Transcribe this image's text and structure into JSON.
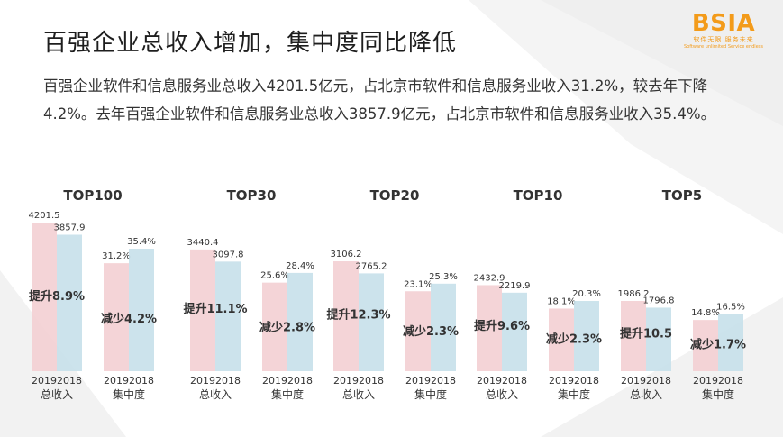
{
  "header": {
    "title": "百强企业总收入增加，集中度同比降低",
    "description": "百强企业软件和信息服务业总收入4201.5亿元，占北京市软件和信息服务业收入31.2%，较去年下降4.2%。去年百强企业软件和信息服务业总收入3857.9亿元，占北京市软件和信息服务业收入35.4%。"
  },
  "logo": {
    "text": "BSIA",
    "cn": "软件无限 服务未来",
    "en": "Software unlimited Service endless"
  },
  "colors": {
    "bar_2019": "#f3cfd3",
    "bar_2018": "#c6e0ea",
    "text": "#333333",
    "logo": "#f39b1a"
  },
  "chart_data": {
    "type": "bar",
    "series_names": [
      "2019",
      "2018"
    ],
    "groups": [
      {
        "title": "TOP100",
        "revenue": {
          "values": [
            4201.5,
            3857.9
          ],
          "change": "提升8.9%",
          "label": "总收入"
        },
        "concentration": {
          "values": [
            31.2,
            35.4
          ],
          "display": [
            "31.2%",
            "35.4%"
          ],
          "change": "减少4.2%",
          "label": "集中度"
        }
      },
      {
        "title": "TOP30",
        "revenue": {
          "values": [
            3440.4,
            3097.8
          ],
          "change": "提升11.1%",
          "label": "总收入"
        },
        "concentration": {
          "values": [
            25.6,
            28.4
          ],
          "display": [
            "25.6%",
            "28.4%"
          ],
          "change": "减少2.8%",
          "label": "集中度"
        }
      },
      {
        "title": "TOP20",
        "revenue": {
          "values": [
            3106.2,
            2765.2
          ],
          "change": "提升12.3%",
          "label": "总收入"
        },
        "concentration": {
          "values": [
            23.1,
            25.3
          ],
          "display": [
            "23.1%",
            "25.3%"
          ],
          "change": "减少2.3%",
          "label": "集中度"
        }
      },
      {
        "title": "TOP10",
        "revenue": {
          "values": [
            2432.9,
            2219.9
          ],
          "change": "提升9.6%",
          "label": "总收入"
        },
        "concentration": {
          "values": [
            18.1,
            20.3
          ],
          "display": [
            "18.1%",
            "20.3%"
          ],
          "change": "减少2.3%",
          "label": "集中度"
        }
      },
      {
        "title": "TOP5",
        "revenue": {
          "values": [
            1986.2,
            1796.8
          ],
          "change": "提升10.5",
          "label": "总收入"
        },
        "concentration": {
          "values": [
            14.8,
            16.5
          ],
          "display": [
            "14.8%",
            "16.5%"
          ],
          "change": "减少1.7%",
          "label": "集中度"
        }
      }
    ],
    "revenue_max": 4201.5,
    "concentration_max": 35.4,
    "legend": "none",
    "grid": false
  }
}
